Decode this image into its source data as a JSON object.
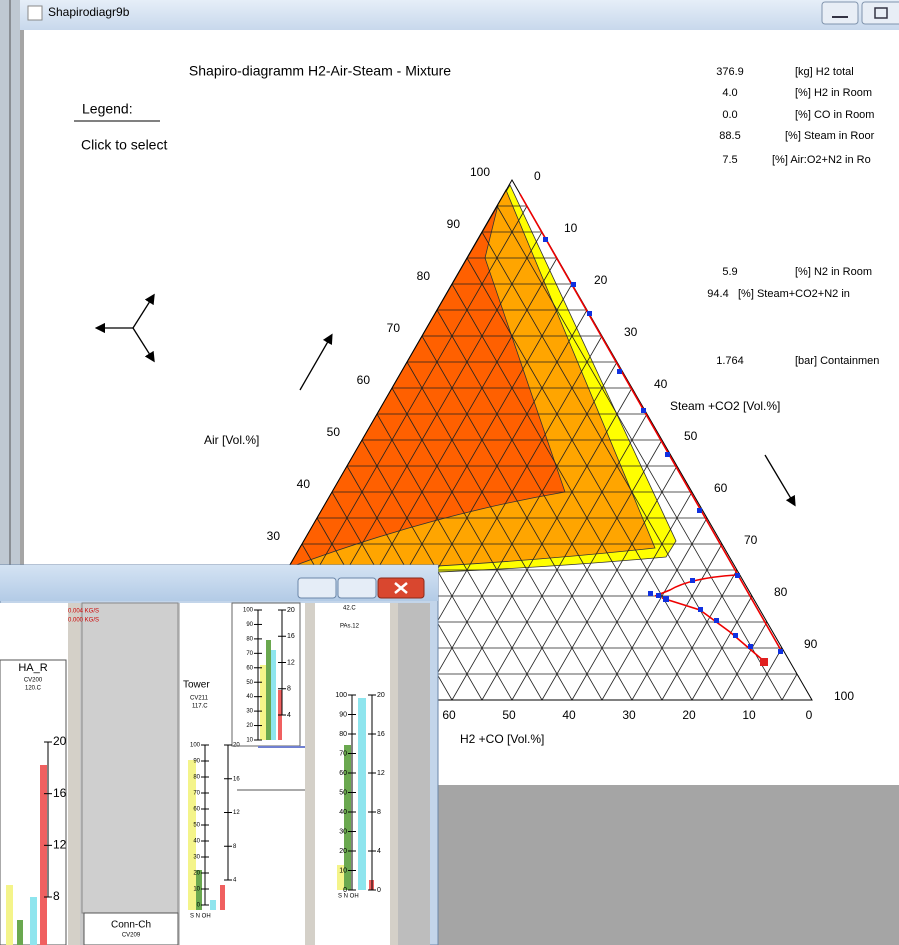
{
  "window": {
    "title": "Shapirodiagr9b"
  },
  "diagram": {
    "title": "Shapiro-diagramm H2-Air-Steam - Mixture",
    "legend": "Legend:",
    "hint": "Click to select",
    "air_label": "Air [Vol.%]",
    "steam_label": "Steam +CO2 [Vol.%]",
    "h2_label": "H2 +CO [Vol.%]",
    "air_ticks": [
      100,
      90,
      80,
      70,
      60,
      50,
      40,
      30
    ],
    "steam_ticks": [
      0,
      10,
      20,
      30,
      40,
      50,
      60,
      70,
      80,
      90,
      100
    ],
    "h2_ticks": [
      60,
      50,
      40,
      30,
      20,
      10,
      0
    ]
  },
  "readouts": [
    {
      "value": "376.9",
      "label": "[kg] H2 total"
    },
    {
      "value": "4.0",
      "label": "[%] H2 in Room"
    },
    {
      "value": "0.0",
      "label": "[%] CO in Room"
    },
    {
      "value": "88.5",
      "label": "[%] Steam in Roor"
    },
    {
      "value": "7.5",
      "label": "[%] Air:O2+N2 in Ro"
    },
    {
      "value": "5.9",
      "label": "[%] N2 in Room"
    },
    {
      "value": "94.4",
      "label": "[%] Steam+CO2+N2 in"
    },
    {
      "value": "1.764",
      "label": "[bar] Containmen"
    }
  ],
  "gauge_window": {
    "flows": [
      "0.004 KG/S",
      "0.000 KG/S"
    ],
    "ha_r": {
      "name": "HA_R",
      "id": "CV200",
      "temp": "120.C",
      "scale": [
        20,
        16,
        12,
        8
      ]
    },
    "conn": {
      "name": "Conn-Ch",
      "id": "CV209"
    },
    "tower": {
      "name": "Tower",
      "id": "CV211",
      "temp": "117.C",
      "small_left": [
        100,
        90,
        80,
        70,
        60,
        50,
        40,
        30,
        20,
        10
      ],
      "small_right": [
        20,
        16,
        12,
        8,
        4
      ],
      "big_left": [
        100,
        90,
        80,
        70,
        60,
        50,
        40,
        30,
        20,
        10,
        0
      ],
      "big_right": [
        20,
        16,
        12,
        8,
        4
      ],
      "footer": "S N OH"
    },
    "right": {
      "temp": "42.C",
      "pressure": "PAs.12",
      "left": [
        100,
        90,
        80,
        70,
        60,
        50,
        40,
        30,
        20,
        10,
        0
      ],
      "right": [
        20,
        16,
        12,
        8,
        4,
        0
      ],
      "footer": "S N OH"
    }
  }
}
